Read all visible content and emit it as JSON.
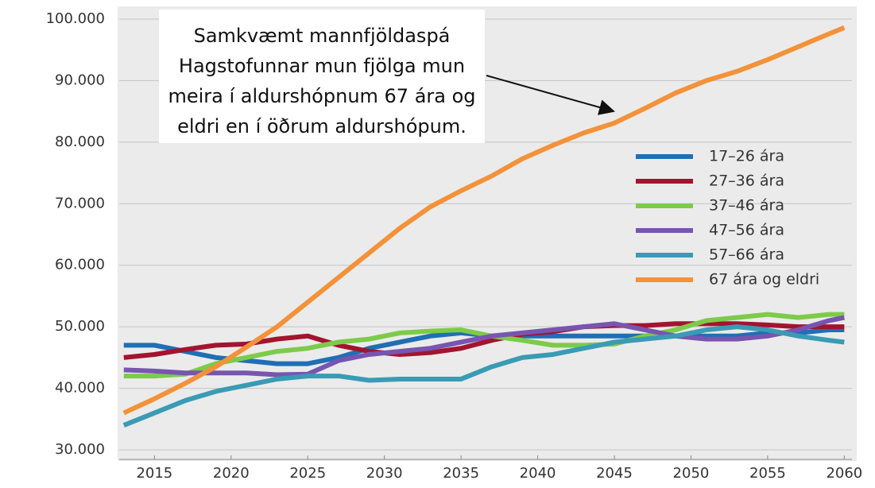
{
  "chart_data": {
    "type": "line",
    "annotation": [
      "Samkvæmt mannfjöldaspá",
      "Hagstofunnar mun fjölga mun",
      "meira í aldurshópnum 67 ára og",
      "eldri en í öðrum aldurshópum."
    ],
    "x": [
      2013,
      2015,
      2017,
      2019,
      2021,
      2023,
      2025,
      2027,
      2029,
      2031,
      2033,
      2035,
      2037,
      2039,
      2041,
      2043,
      2045,
      2047,
      2049,
      2051,
      2053,
      2055,
      2057,
      2059,
      2060
    ],
    "series": [
      {
        "name": "17–26 ára",
        "color": "#1f6fb4",
        "values": [
          47000,
          47000,
          46000,
          45000,
          44500,
          44000,
          44000,
          45000,
          46500,
          47500,
          48500,
          49000,
          48500,
          48500,
          48500,
          48500,
          48500,
          48500,
          48500,
          48500,
          48500,
          49000,
          49000,
          49500,
          49500
        ]
      },
      {
        "name": "27–36 ára",
        "color": "#a3142f",
        "values": [
          45000,
          45500,
          46300,
          47000,
          47200,
          48000,
          48500,
          47000,
          46000,
          45500,
          45800,
          46500,
          47800,
          48800,
          49200,
          50000,
          50200,
          50200,
          50500,
          50500,
          50500,
          50300,
          50000,
          50000,
          50000
        ]
      },
      {
        "name": "37–46 ára",
        "color": "#7ccb4a",
        "values": [
          42000,
          42000,
          42300,
          44000,
          45000,
          46000,
          46500,
          47500,
          48000,
          49000,
          49300,
          49500,
          48500,
          47800,
          47000,
          47000,
          47200,
          48500,
          49500,
          51000,
          51500,
          52000,
          51500,
          52000,
          52000
        ]
      },
      {
        "name": "47–56 ára",
        "color": "#7855b0",
        "values": [
          43000,
          42800,
          42500,
          42500,
          42500,
          42200,
          42300,
          44500,
          45500,
          46000,
          46500,
          47500,
          48500,
          49000,
          49500,
          50000,
          50500,
          49500,
          48500,
          48000,
          48000,
          48500,
          49500,
          51000,
          51500
        ]
      },
      {
        "name": "57–66 ára",
        "color": "#3a9bb5",
        "values": [
          34000,
          36000,
          38000,
          39500,
          40500,
          41500,
          42000,
          42000,
          41300,
          41500,
          41500,
          41500,
          43500,
          45000,
          45500,
          46500,
          47500,
          48000,
          48500,
          49500,
          50000,
          49500,
          48500,
          47800,
          47500
        ]
      },
      {
        "name": "67 ára og eldri",
        "color": "#f39239",
        "values": [
          36000,
          38300,
          40800,
          43500,
          46700,
          50000,
          54000,
          58000,
          62000,
          66000,
          69500,
          72100,
          74500,
          77300,
          79500,
          81500,
          83100,
          85500,
          88000,
          90000,
          91500,
          93400,
          95500,
          97600,
          98600
        ]
      }
    ],
    "xlim": [
      2012.7,
      2060.5
    ],
    "xticks": [
      2015,
      2020,
      2025,
      2030,
      2035,
      2040,
      2045,
      2050,
      2055,
      2060
    ],
    "ylim": [
      30000,
      100000
    ],
    "yticks": [
      {
        "value": 30000,
        "label": "30.000"
      },
      {
        "value": 40000,
        "label": "40.000"
      },
      {
        "value": 50000,
        "label": "50.000"
      },
      {
        "value": 60000,
        "label": "60.000"
      },
      {
        "value": 70000,
        "label": "70.000"
      },
      {
        "value": 80000,
        "label": "80.000"
      },
      {
        "value": 90000,
        "label": "90.000"
      },
      {
        "value": 100000,
        "label": "100.000"
      }
    ],
    "grid": true
  }
}
